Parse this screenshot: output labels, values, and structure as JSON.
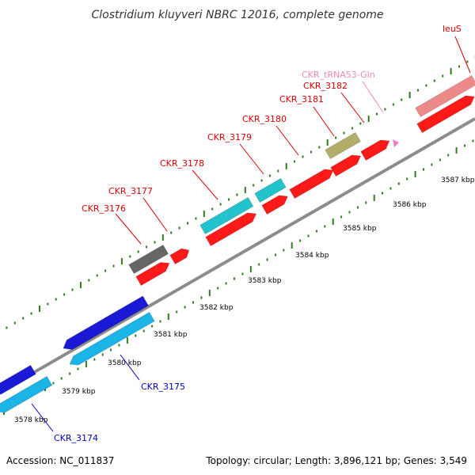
{
  "title": "Clostridium kluyveri NBRC 12016, complete genome",
  "footer": {
    "accession": "Accession: NC_011837",
    "summary": "Topology: circular; Length: 3,896,121 bp; Genes: 3,549"
  },
  "colors": {
    "backbone": "#8c8c8c",
    "tick": "#2e7d1e",
    "cds_forward": "#ff1a1a",
    "cds_reverse": "#1a1ad6",
    "cds_reverse_light": "#1ab4e6",
    "cds_cyan": "#22c3cc",
    "cds_gray": "#666666",
    "cds_olive": "#b3ad6b",
    "cds_pink": "#ec8a8a",
    "trna": "#f07cc0",
    "label_forward": "#dd0000",
    "label_reverse": "#0000bb",
    "label_trna": "#ee88bb"
  },
  "kbp_labels": [
    "3578 kbp",
    "3579 kbp",
    "3580 kbp",
    "3581 kbp",
    "3582 kbp",
    "3583 kbp",
    "3584 kbp",
    "3585 kbp",
    "3586 kbp",
    "3587 kbp"
  ],
  "gene_labels": [
    {
      "text": "CKR_3174",
      "strand": "reverse"
    },
    {
      "text": "CKR_3175",
      "strand": "reverse"
    },
    {
      "text": "CKR_3176",
      "strand": "forward"
    },
    {
      "text": "CKR_3177",
      "strand": "forward"
    },
    {
      "text": "CKR_3178",
      "strand": "forward"
    },
    {
      "text": "CKR_3179",
      "strand": "forward"
    },
    {
      "text": "CKR_3180",
      "strand": "forward"
    },
    {
      "text": "CKR_3181",
      "strand": "forward"
    },
    {
      "text": "CKR_3182",
      "strand": "forward"
    },
    {
      "text": "CKR_tRNA53-Gln",
      "strand": "trna"
    },
    {
      "text": "leuS",
      "strand": "forward"
    }
  ]
}
